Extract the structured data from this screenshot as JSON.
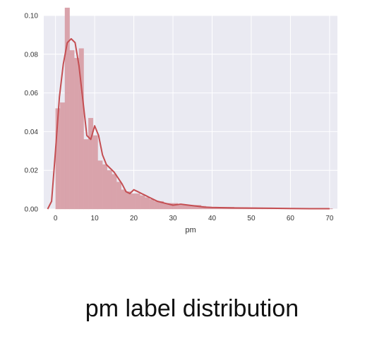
{
  "caption": "pm label distribution",
  "colors": {
    "plot_background": "#eaeaf2",
    "grid": "#ffffff",
    "bar_fill": "#d9a3ab",
    "kde_line": "#c44e52"
  },
  "chart_data": {
    "type": "bar",
    "title": "",
    "xlabel": "pm",
    "ylabel": "",
    "xlim": [
      -3,
      72
    ],
    "ylim": [
      0,
      0.1
    ],
    "grid": true,
    "x_ticks": [
      0,
      10,
      20,
      30,
      40,
      50,
      60,
      70
    ],
    "y_ticks": [
      0.0,
      0.02,
      0.04,
      0.06,
      0.08,
      0.1
    ],
    "y_tick_labels": [
      "0.00",
      "0.02",
      "0.04",
      "0.06",
      "0.08",
      "0.10"
    ],
    "histogram": {
      "bin_edges": [
        0,
        1.2,
        2.4,
        3.6,
        4.8,
        6,
        7.2,
        8.4,
        9.6,
        10.8,
        12,
        13.2,
        14.4,
        15.6,
        16.8,
        18,
        19.2,
        20.4,
        21.6,
        22.8,
        24,
        25.2,
        26.4,
        27.6,
        28.8,
        30,
        31.2,
        32.4,
        33.6,
        34.8,
        36,
        37.2,
        38.4,
        39.6,
        40.8,
        42,
        43.2,
        44.4,
        45.6,
        46.8,
        48,
        49.2,
        50.4,
        51.6,
        52.8,
        54,
        55.2,
        56.4,
        57.6,
        58.8,
        60,
        61.2,
        62.4,
        63.6,
        64.8,
        66,
        67.2,
        68.4,
        69.6,
        70.8
      ],
      "densities": [
        0.052,
        0.055,
        0.104,
        0.082,
        0.078,
        0.083,
        0.036,
        0.047,
        0.038,
        0.025,
        0.023,
        0.02,
        0.018,
        0.014,
        0.01,
        0.009,
        0.008,
        0.008,
        0.007,
        0.006,
        0.005,
        0.004,
        0.004,
        0.003,
        0.003,
        0.003,
        0.002,
        0.002,
        0.002,
        0.002,
        0.002,
        0.0015,
        0.001,
        0.001,
        0.001,
        0.001,
        0.001,
        0.001,
        0.0008,
        0.0008,
        0.0008,
        0.0007,
        0.0007,
        0.0006,
        0.0006,
        0.0006,
        0.0005,
        0.0005,
        0.0005,
        0.0005,
        0.0005,
        0.0004,
        0.0004,
        0.0004,
        0.0004,
        0.0004,
        0.0003,
        0.0003,
        0.0003
      ]
    },
    "kde": {
      "x": [
        -2,
        -1,
        0,
        1,
        2,
        3,
        4,
        5,
        6,
        7,
        8,
        9,
        10,
        11,
        12,
        13,
        14,
        15,
        16,
        17,
        18,
        19,
        20,
        21,
        22,
        23,
        24,
        25,
        26,
        28,
        30,
        32,
        34,
        36,
        38,
        40,
        45,
        50,
        55,
        60,
        65,
        70
      ],
      "y": [
        0.0,
        0.004,
        0.03,
        0.058,
        0.075,
        0.086,
        0.088,
        0.086,
        0.074,
        0.056,
        0.038,
        0.036,
        0.043,
        0.038,
        0.028,
        0.023,
        0.021,
        0.019,
        0.016,
        0.013,
        0.009,
        0.008,
        0.01,
        0.009,
        0.008,
        0.007,
        0.006,
        0.005,
        0.004,
        0.003,
        0.002,
        0.0025,
        0.002,
        0.0015,
        0.001,
        0.0008,
        0.0006,
        0.0005,
        0.0004,
        0.0003,
        0.0002,
        0.0002
      ]
    }
  }
}
